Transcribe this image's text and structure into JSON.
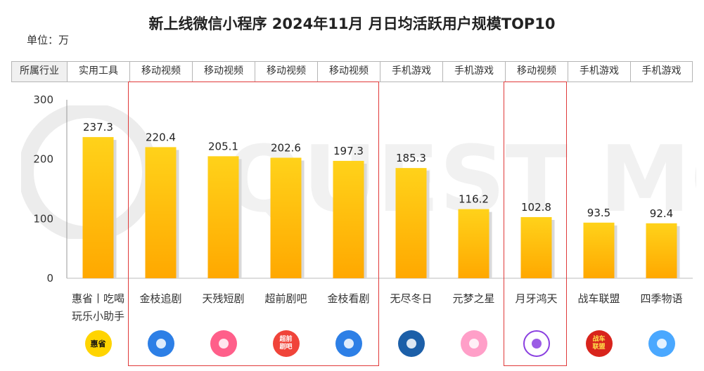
{
  "title": "新上线微信小程序 2024年11月 月日均活跃用户规模TOP10",
  "unit": "单位：万",
  "industry_header": "所属行业",
  "watermark_text": "QUEST MOBILE",
  "chart_data": {
    "type": "bar",
    "title": "新上线微信小程序 2024年11月 月日均活跃用户规模TOP10",
    "ylabel": "单位：万",
    "ylim": [
      0,
      300
    ],
    "yticks": [
      0,
      100,
      200,
      300
    ],
    "grid": false,
    "categories": [
      "惠省丨吃喝玩乐小助手",
      "金枝追剧",
      "天残短剧",
      "超前剧吧",
      "金枝看剧",
      "无尽冬日",
      "元梦之星",
      "月牙鸿天",
      "战车联盟",
      "四季物语"
    ],
    "category_lines": [
      [
        "惠省丨吃喝",
        "玩乐小助手"
      ],
      [
        "金枝追剧"
      ],
      [
        "天残短剧"
      ],
      [
        "超前剧吧"
      ],
      [
        "金枝看剧"
      ],
      [
        "无尽冬日"
      ],
      [
        "元梦之星"
      ],
      [
        "月牙鸿天"
      ],
      [
        "战车联盟"
      ],
      [
        "四季物语"
      ]
    ],
    "industries": [
      "实用工具",
      "移动视频",
      "移动视频",
      "移动视频",
      "移动视频",
      "手机游戏",
      "手机游戏",
      "移动视频",
      "手机游戏",
      "手机游戏"
    ],
    "values": [
      237.3,
      220.4,
      205.1,
      202.6,
      197.3,
      185.3,
      116.2,
      102.8,
      93.5,
      92.4
    ],
    "value_labels": [
      "237.3",
      "220.4",
      "205.1",
      "202.6",
      "197.3",
      "185.3",
      "116.2",
      "102.8",
      "93.5",
      "92.4"
    ],
    "highlight_groups": [
      [
        1,
        4
      ],
      [
        7,
        7
      ]
    ],
    "bar_color_top": "#ffd21a",
    "bar_color_bottom": "#ffa800",
    "highlight_color": "#e03a3a"
  },
  "icons": [
    {
      "name": "huisheng-logo-icon",
      "text": "惠省",
      "bg": "#ffd400",
      "fg": "#111111"
    },
    {
      "name": "jinzhi-zhuiju-logo-icon",
      "text": "",
      "bg": "#2d7fe6",
      "fg": "#ffffff"
    },
    {
      "name": "tiancan-duanju-logo-icon",
      "text": "",
      "bg": "#ff5f8a",
      "fg": "#ffffff"
    },
    {
      "name": "chaoqian-juba-logo-icon",
      "text": "超前剧吧",
      "bg": "#f0443a",
      "fg": "#ffffff"
    },
    {
      "name": "jinzhi-kanju-logo-icon",
      "text": "",
      "bg": "#2d7fe6",
      "fg": "#ffffff"
    },
    {
      "name": "wujin-dongri-logo-icon",
      "text": "",
      "bg": "#1c5fa8",
      "fg": "#ffffff"
    },
    {
      "name": "yuanmeng-zhixing-logo-icon",
      "text": "",
      "bg": "#ff9fc8",
      "fg": "#ffffff"
    },
    {
      "name": "yueya-hongtian-logo-icon",
      "text": "",
      "bg": "#ffffff",
      "fg": "#8a3fe0"
    },
    {
      "name": "zhanche-lianmeng-logo-icon",
      "text": "战车联盟",
      "bg": "#d8241c",
      "fg": "#ffe14a"
    },
    {
      "name": "siji-wuyu-logo-icon",
      "text": "",
      "bg": "#4aa8ff",
      "fg": "#ffffff"
    }
  ]
}
